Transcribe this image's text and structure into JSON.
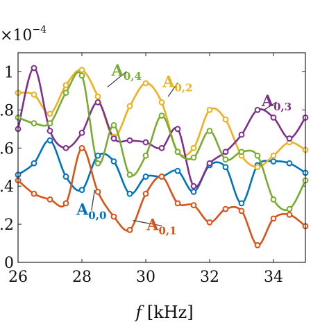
{
  "chart_data": {
    "type": "line",
    "xlabel_symbol": "f",
    "xlabel_unit": "[kHz]",
    "multiplier_base": "×10",
    "multiplier_exp": "−4",
    "xlim": [
      26,
      35
    ],
    "ylim": [
      0,
      1.1
    ],
    "xticks": [
      26,
      28,
      30,
      32,
      34
    ],
    "yticks": [
      {
        "v": 0,
        "t": "0"
      },
      {
        "v": 0.2,
        "t": ".2"
      },
      {
        "v": 0.4,
        "t": ".4"
      },
      {
        "v": 0.6,
        "t": ".6"
      },
      {
        "v": 0.8,
        "t": ".8"
      },
      {
        "v": 1.0,
        "t": "1"
      }
    ],
    "x": [
      26.0,
      26.5,
      27.0,
      27.5,
      28.0,
      28.5,
      29.0,
      29.5,
      30.0,
      30.5,
      31.0,
      31.5,
      32.0,
      32.5,
      33.0,
      33.5,
      34.0,
      34.5,
      35.0
    ],
    "series": [
      {
        "name": "A",
        "sub": "0,0",
        "color": "#0072BD",
        "label_pos": [
          28.3,
          0.25
        ],
        "label_leader": [
          28.4,
          0.38
        ],
        "values": [
          0.46,
          0.52,
          0.64,
          0.45,
          0.38,
          0.56,
          0.53,
          0.36,
          0.45,
          0.45,
          0.48,
          0.37,
          0.51,
          0.5,
          0.31,
          0.51,
          0.53,
          0.52,
          0.47
        ]
      },
      {
        "name": "A",
        "sub": "0,1",
        "color": "#D95319",
        "label_pos": [
          30.5,
          0.17
        ],
        "label_leader": [
          29.6,
          0.22
        ],
        "values": [
          0.43,
          0.36,
          0.33,
          0.31,
          0.6,
          0.37,
          0.24,
          0.17,
          0.36,
          0.45,
          0.31,
          0.3,
          0.21,
          0.28,
          0.27,
          0.09,
          0.23,
          0.25,
          0.19
        ]
      },
      {
        "name": "A",
        "sub": "0,2",
        "color": "#EDB120",
        "label_pos": [
          31.0,
          0.92
        ],
        "label_leader": [
          30.7,
          0.87
        ],
        "values": [
          0.89,
          0.88,
          0.78,
          0.93,
          1.01,
          0.87,
          0.66,
          0.82,
          0.94,
          0.84,
          0.58,
          0.6,
          0.8,
          0.75,
          0.56,
          0.5,
          0.56,
          0.63,
          0.59
        ]
      },
      {
        "name": "A",
        "sub": "0,3",
        "color": "#7E2F8E",
        "label_pos": [
          34.1,
          0.82
        ],
        "label_leader": [
          33.7,
          0.8
        ],
        "values": [
          0.7,
          1.02,
          0.69,
          0.6,
          0.68,
          0.84,
          0.65,
          0.64,
          0.63,
          0.6,
          0.7,
          0.4,
          0.52,
          0.58,
          0.67,
          0.8,
          0.76,
          0.65,
          0.76
        ]
      },
      {
        "name": "A",
        "sub": "0,4",
        "color": "#77AC30",
        "label_pos": [
          29.4,
          0.98
        ],
        "label_leader": [
          28.8,
          0.92
        ],
        "values": [
          0.76,
          0.73,
          0.73,
          0.89,
          0.98,
          0.52,
          0.72,
          0.46,
          0.56,
          0.77,
          0.58,
          0.55,
          0.69,
          0.54,
          0.58,
          0.56,
          0.33,
          0.28,
          0.43
        ]
      }
    ]
  }
}
